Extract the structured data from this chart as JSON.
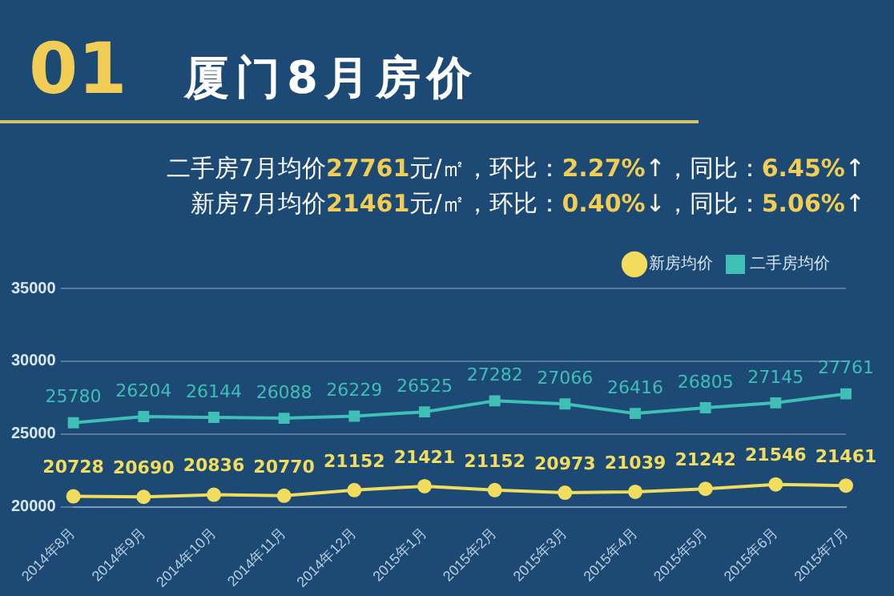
{
  "chart_data": {
    "type": "line",
    "title": "厦门8月房价",
    "annotations": [
      "01",
      "二手房7月均价27761元/㎡，环比：2.27%↑，同比：6.45%↑",
      "新房7月均价21461元/㎡，环比：0.40%↓，同比：5.06%↑"
    ],
    "categories": [
      "2014年8月",
      "2014年9月",
      "2014年10月",
      "2014年11月",
      "2014年12月",
      "2015年1月",
      "2015年2月",
      "2015年3月",
      "2015年4月",
      "2015年5月",
      "2015年6月",
      "2015年7月"
    ],
    "series": [
      {
        "name": "新房均价",
        "color": "#f2dc5d",
        "marker": "circle",
        "values": [
          20728,
          20690,
          20836,
          20770,
          21152,
          21421,
          21152,
          20973,
          21039,
          21242,
          21546,
          21461
        ]
      },
      {
        "name": "二手房均价",
        "color": "#3fbfb5",
        "marker": "square",
        "values": [
          25780,
          26204,
          26144,
          26088,
          26229,
          26525,
          27282,
          27066,
          26416,
          26805,
          27145,
          27761
        ]
      }
    ],
    "ylim": [
      20000,
      35000
    ],
    "yticks": [
      20000,
      25000,
      30000,
      35000
    ],
    "grid": "y",
    "legend": "top",
    "data_labels": true
  }
}
